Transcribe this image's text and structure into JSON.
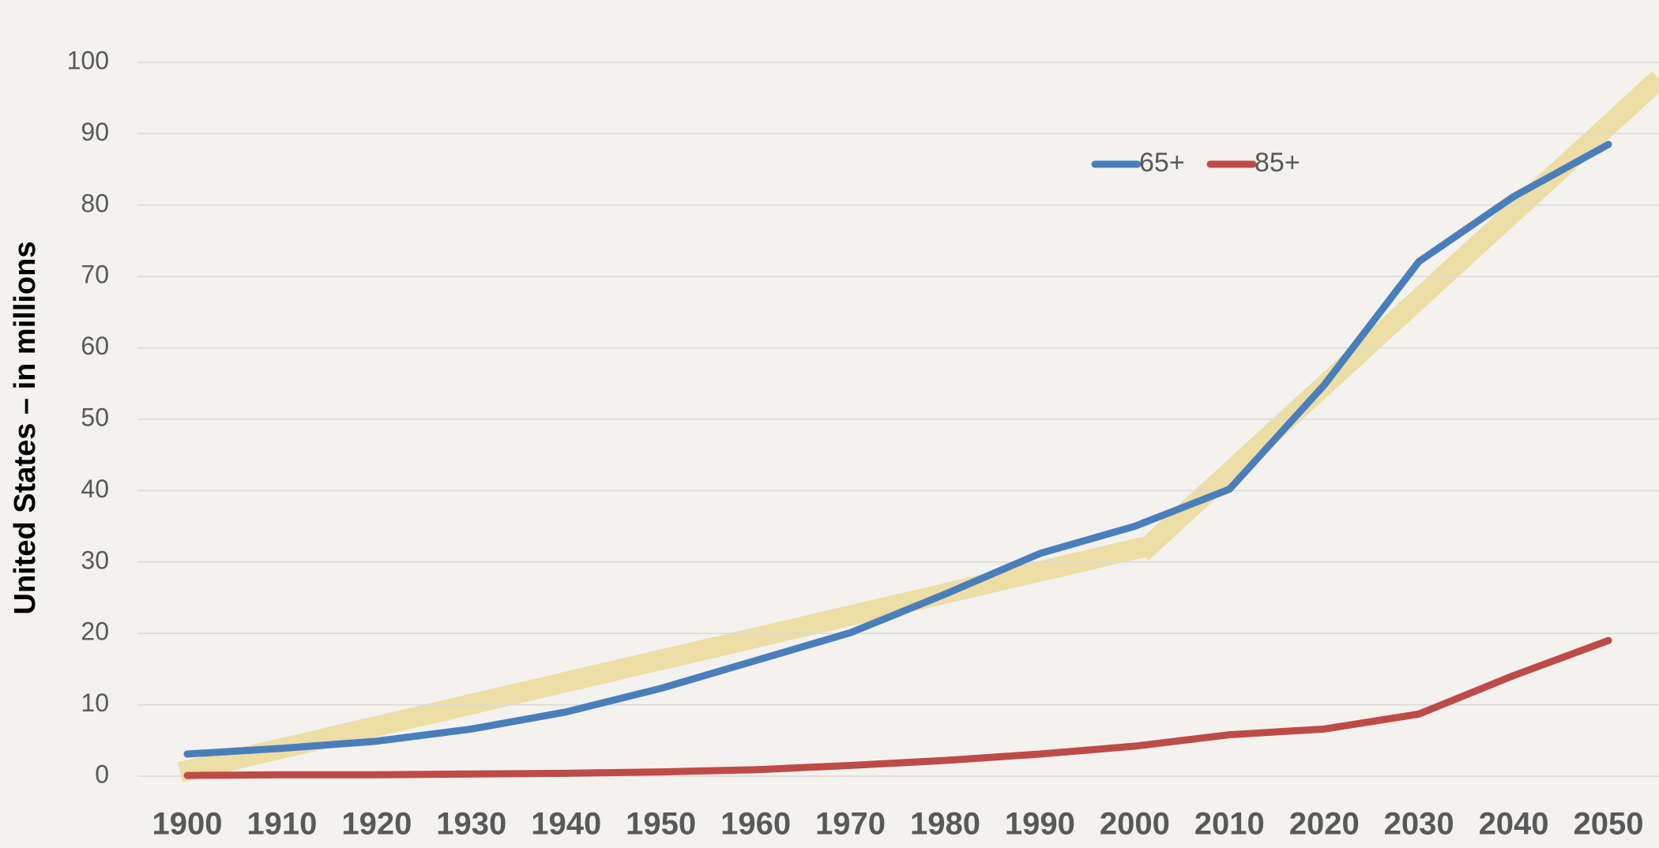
{
  "chart_data": {
    "type": "line",
    "y_label": "United States – in millions",
    "categories": [
      "1900",
      "1910",
      "1920",
      "1930",
      "1940",
      "1950",
      "1960",
      "1970",
      "1980",
      "1990",
      "2000",
      "2010",
      "2020",
      "2030",
      "2040",
      "2050"
    ],
    "series": [
      {
        "name": "65+",
        "color": "#4a7ebb",
        "values": [
          3.1,
          3.9,
          4.9,
          6.6,
          9.0,
          12.3,
          16.2,
          20.1,
          25.5,
          31.2,
          35.0,
          40.2,
          54.8,
          72.1,
          81.2,
          88.5
        ]
      },
      {
        "name": "85+",
        "color": "#be4b48",
        "values": [
          0.1,
          0.2,
          0.2,
          0.3,
          0.4,
          0.6,
          0.9,
          1.5,
          2.2,
          3.1,
          4.2,
          5.8,
          6.6,
          8.7,
          14.1,
          19.0
        ]
      }
    ],
    "ylim": [
      0,
      100
    ],
    "yticks": [
      0,
      10,
      20,
      30,
      40,
      50,
      60,
      70,
      80,
      90,
      100
    ],
    "grid": true
  }
}
